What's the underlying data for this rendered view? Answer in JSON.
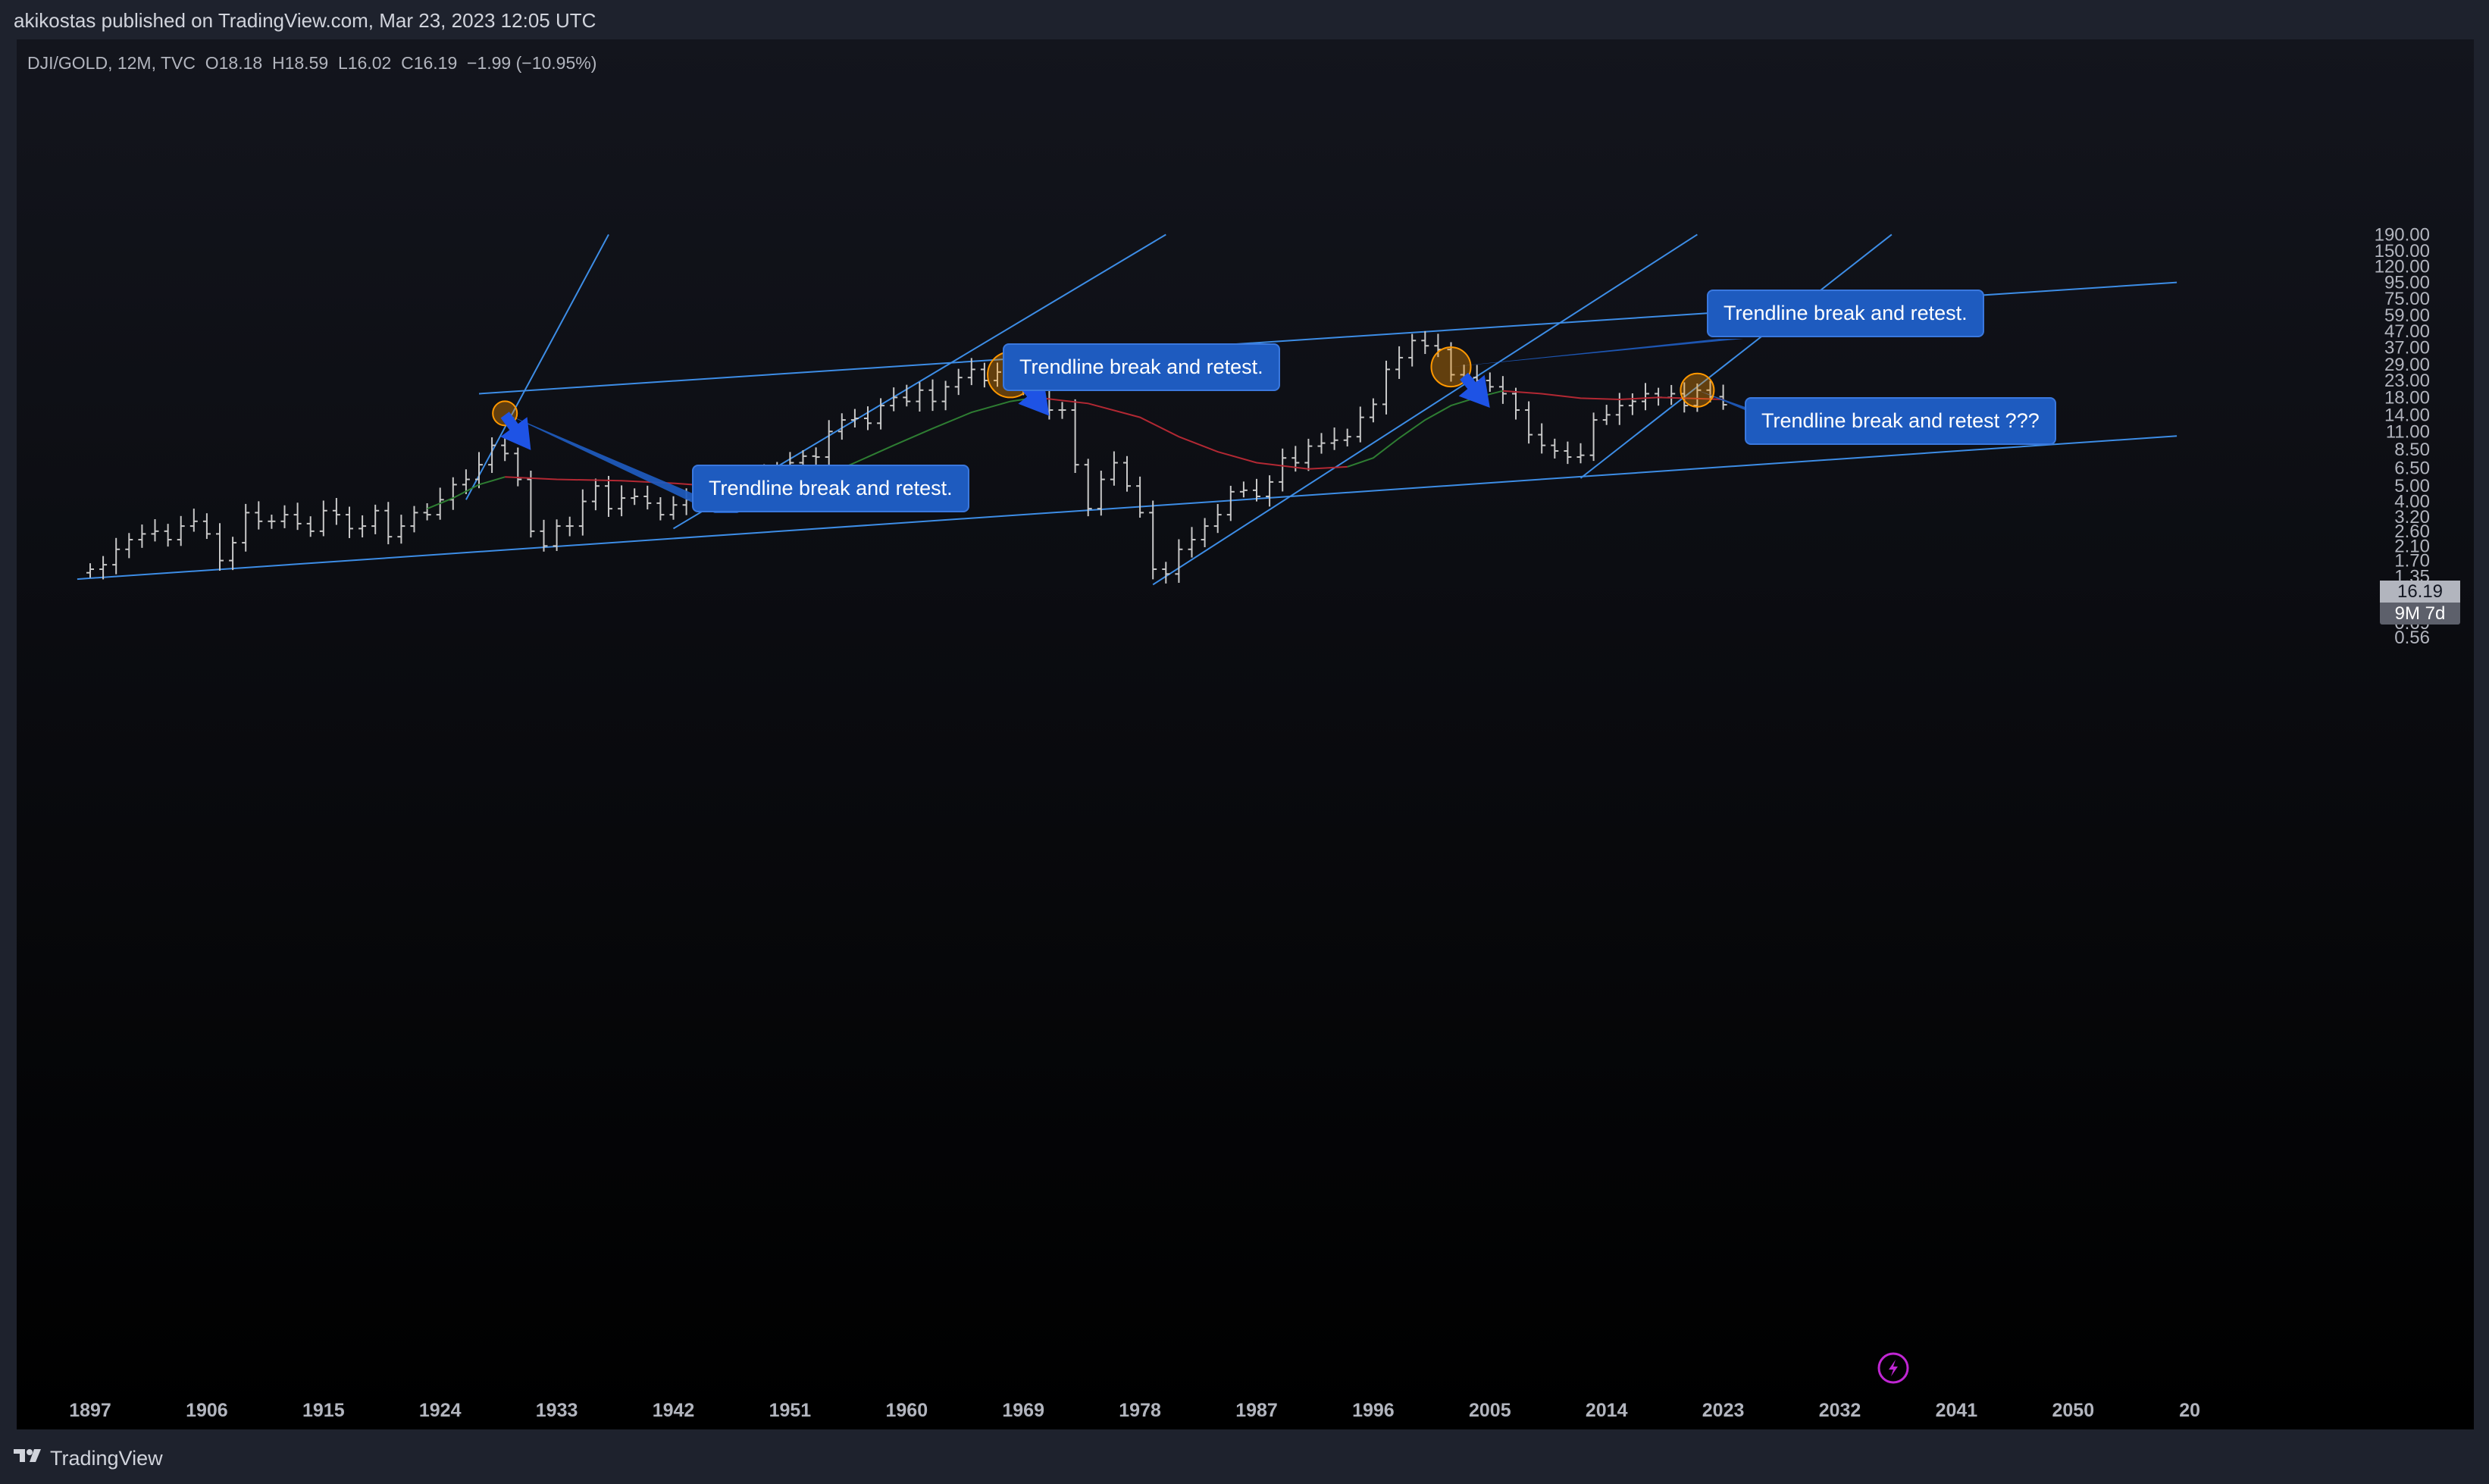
{
  "header": {
    "publish_line": "akikostas published on TradingView.com, Mar 23, 2023 12:05 UTC"
  },
  "legend": {
    "symbol": "DJI/GOLD, 12M, TVC",
    "open": "O18.18",
    "high": "H18.59",
    "low": "L16.02",
    "close": "C16.19",
    "change": "−1.99 (−10.95%)"
  },
  "price_label": {
    "value": "16.19",
    "countdown": "9M 7d"
  },
  "callouts": [
    "Trendline break and retest.",
    "Trendline break and retest.",
    "Trendline break and retest.",
    "Trendline break and retest ???"
  ],
  "footer": {
    "brand": "TradingView"
  },
  "icons": [
    "tradingview-logo-icon",
    "lightning-icon"
  ],
  "colors": {
    "bars": "#c8c8c8",
    "trendline": "#2962ff",
    "channel": "#3d8de6",
    "ma_fast": "#2e7d32",
    "ma_slow": "#b22833",
    "highlight": "#ff9800",
    "arrow": "#1e53e5",
    "callout_bg": "#1e5bbf"
  },
  "chart_data": {
    "type": "ohlc",
    "symbol": "DJI/GOLD",
    "interval": "12M",
    "y_scale": "log",
    "ylim": [
      0.5,
      190
    ],
    "xlim": [
      1895,
      2058
    ],
    "y_ticks": [
      "190.00",
      "150.00",
      "120.00",
      "95.00",
      "75.00",
      "59.00",
      "47.00",
      "37.00",
      "29.00",
      "23.00",
      "18.00",
      "14.00",
      "11.00",
      "8.50",
      "6.50",
      "5.00",
      "4.00",
      "3.20",
      "2.60",
      "2.10",
      "1.70",
      "1.35",
      "1.10",
      "0.85",
      "0.69",
      "0.56"
    ],
    "x_ticks": [
      "1897",
      "1906",
      "1915",
      "1924",
      "1933",
      "1942",
      "1951",
      "1960",
      "1969",
      "1978",
      "1987",
      "1996",
      "2005",
      "2014",
      "2023",
      "2032",
      "2041",
      "2050",
      "20"
    ],
    "bars": [
      {
        "year": 1897,
        "close": 1.5
      },
      {
        "year": 1898,
        "close": 1.6
      },
      {
        "year": 1899,
        "close": 2.0
      },
      {
        "year": 1900,
        "close": 2.3
      },
      {
        "year": 1901,
        "close": 2.5
      },
      {
        "year": 1902,
        "close": 2.6
      },
      {
        "year": 1903,
        "close": 2.3
      },
      {
        "year": 1904,
        "close": 2.8
      },
      {
        "year": 1905,
        "close": 3.0
      },
      {
        "year": 1906,
        "close": 2.5
      },
      {
        "year": 1907,
        "close": 1.7
      },
      {
        "year": 1908,
        "close": 2.2
      },
      {
        "year": 1909,
        "close": 3.4
      },
      {
        "year": 1910,
        "close": 3.0
      },
      {
        "year": 1911,
        "close": 3.0
      },
      {
        "year": 1912,
        "close": 3.3
      },
      {
        "year": 1913,
        "close": 2.9
      },
      {
        "year": 1914,
        "close": 2.6
      },
      {
        "year": 1915,
        "close": 3.5
      },
      {
        "year": 1916,
        "close": 3.3
      },
      {
        "year": 1917,
        "close": 2.7
      },
      {
        "year": 1918,
        "close": 2.8
      },
      {
        "year": 1919,
        "close": 3.5
      },
      {
        "year": 1920,
        "close": 2.4
      },
      {
        "year": 1921,
        "close": 2.8
      },
      {
        "year": 1922,
        "close": 3.4
      },
      {
        "year": 1923,
        "close": 3.3
      },
      {
        "year": 1924,
        "close": 4.1
      },
      {
        "year": 1925,
        "close": 5.1
      },
      {
        "year": 1926,
        "close": 5.5
      },
      {
        "year": 1927,
        "close": 6.8
      },
      {
        "year": 1928,
        "close": 9.0
      },
      {
        "year": 1929,
        "close": 8.0
      },
      {
        "year": 1930,
        "close": 5.5
      },
      {
        "year": 1931,
        "close": 2.6
      },
      {
        "year": 1932,
        "close": 2.1
      },
      {
        "year": 1933,
        "close": 2.8
      },
      {
        "year": 1934,
        "close": 2.8
      },
      {
        "year": 1935,
        "close": 4.0
      },
      {
        "year": 1936,
        "close": 5.0
      },
      {
        "year": 1937,
        "close": 3.6
      },
      {
        "year": 1938,
        "close": 4.2
      },
      {
        "year": 1939,
        "close": 4.3
      },
      {
        "year": 1940,
        "close": 3.9
      },
      {
        "year": 1941,
        "close": 3.3
      },
      {
        "year": 1942,
        "close": 3.8
      },
      {
        "year": 1943,
        "close": 4.1
      },
      {
        "year": 1944,
        "close": 4.4
      },
      {
        "year": 1945,
        "close": 5.2
      },
      {
        "year": 1946,
        "close": 5.0
      },
      {
        "year": 1947,
        "close": 5.0
      },
      {
        "year": 1948,
        "close": 5.1
      },
      {
        "year": 1949,
        "close": 5.7
      },
      {
        "year": 1950,
        "close": 6.3
      },
      {
        "year": 1951,
        "close": 7.0
      },
      {
        "year": 1952,
        "close": 7.7
      },
      {
        "year": 1953,
        "close": 7.6
      },
      {
        "year": 1954,
        "close": 11.0
      },
      {
        "year": 1955,
        "close": 13.0
      },
      {
        "year": 1956,
        "close": 13.3
      },
      {
        "year": 1957,
        "close": 12.4
      },
      {
        "year": 1958,
        "close": 16.0
      },
      {
        "year": 1959,
        "close": 18.0
      },
      {
        "year": 1960,
        "close": 17.0
      },
      {
        "year": 1961,
        "close": 20.0
      },
      {
        "year": 1962,
        "close": 17.0
      },
      {
        "year": 1963,
        "close": 21.0
      },
      {
        "year": 1964,
        "close": 24.0
      },
      {
        "year": 1965,
        "close": 27.0
      },
      {
        "year": 1966,
        "close": 23.0
      },
      {
        "year": 1967,
        "close": 26.0
      },
      {
        "year": 1968,
        "close": 23.0
      },
      {
        "year": 1969,
        "close": 20.0
      },
      {
        "year": 1970,
        "close": 22.0
      },
      {
        "year": 1971,
        "close": 15.0
      },
      {
        "year": 1972,
        "close": 15.0
      },
      {
        "year": 1973,
        "close": 6.8
      },
      {
        "year": 1974,
        "close": 3.6
      },
      {
        "year": 1975,
        "close": 5.5
      },
      {
        "year": 1976,
        "close": 7.0
      },
      {
        "year": 1977,
        "close": 5.0
      },
      {
        "year": 1978,
        "close": 3.4
      },
      {
        "year": 1979,
        "close": 1.5
      },
      {
        "year": 1980,
        "close": 1.4
      },
      {
        "year": 1981,
        "close": 2.0
      },
      {
        "year": 1982,
        "close": 2.3
      },
      {
        "year": 1983,
        "close": 2.8
      },
      {
        "year": 1984,
        "close": 3.3
      },
      {
        "year": 1985,
        "close": 4.6
      },
      {
        "year": 1986,
        "close": 4.7
      },
      {
        "year": 1987,
        "close": 4.3
      },
      {
        "year": 1988,
        "close": 5.3
      },
      {
        "year": 1989,
        "close": 7.5
      },
      {
        "year": 1990,
        "close": 7.0
      },
      {
        "year": 1991,
        "close": 8.9
      },
      {
        "year": 1992,
        "close": 9.3
      },
      {
        "year": 1993,
        "close": 9.7
      },
      {
        "year": 1994,
        "close": 10.2
      },
      {
        "year": 1995,
        "close": 13.5
      },
      {
        "year": 1996,
        "close": 16.3
      },
      {
        "year": 1997,
        "close": 27.0
      },
      {
        "year": 1998,
        "close": 32.0
      },
      {
        "year": 1999,
        "close": 41.0
      },
      {
        "year": 2000,
        "close": 38.0
      },
      {
        "year": 2001,
        "close": 36.0
      },
      {
        "year": 2002,
        "close": 25.0
      },
      {
        "year": 2003,
        "close": 24.0
      },
      {
        "year": 2004,
        "close": 23.0
      },
      {
        "year": 2005,
        "close": 21.0
      },
      {
        "year": 2006,
        "close": 19.0
      },
      {
        "year": 2007,
        "close": 15.0
      },
      {
        "year": 2008,
        "close": 10.5
      },
      {
        "year": 2009,
        "close": 9.0
      },
      {
        "year": 2010,
        "close": 8.3
      },
      {
        "year": 2011,
        "close": 7.6
      },
      {
        "year": 2012,
        "close": 7.8
      },
      {
        "year": 2013,
        "close": 13.0
      },
      {
        "year": 2014,
        "close": 14.0
      },
      {
        "year": 2015,
        "close": 16.0
      },
      {
        "year": 2016,
        "close": 17.0
      },
      {
        "year": 2017,
        "close": 19.0
      },
      {
        "year": 2018,
        "close": 18.0
      },
      {
        "year": 2019,
        "close": 19.0
      },
      {
        "year": 2020,
        "close": 16.0
      },
      {
        "year": 2021,
        "close": 20.0
      },
      {
        "year": 2022,
        "close": 18.2
      },
      {
        "year": 2023,
        "close": 16.19
      }
    ],
    "moving_averages": [
      {
        "color": "green",
        "points": [
          [
            1923,
            3.6
          ],
          [
            1925,
            4.2
          ],
          [
            1927,
            5.1
          ],
          [
            1929,
            5.7
          ]
        ]
      },
      {
        "color": "red",
        "points": [
          [
            1929,
            5.7
          ],
          [
            1933,
            5.5
          ],
          [
            1938,
            5.4
          ],
          [
            1942,
            5.2
          ],
          [
            1945,
            5.0
          ],
          [
            1950,
            5.0
          ]
        ]
      },
      {
        "color": "green",
        "points": [
          [
            1950,
            5.0
          ],
          [
            1953,
            5.5
          ],
          [
            1956,
            7.0
          ],
          [
            1959,
            9.0
          ],
          [
            1962,
            11.5
          ],
          [
            1965,
            14.5
          ],
          [
            1968,
            17.0
          ],
          [
            1970,
            18.0
          ]
        ]
      },
      {
        "color": "red",
        "points": [
          [
            1970,
            18.0
          ],
          [
            1974,
            16.5
          ],
          [
            1978,
            13.5
          ],
          [
            1981,
            10.2
          ],
          [
            1984,
            8.2
          ],
          [
            1987,
            7.0
          ],
          [
            1991,
            6.4
          ],
          [
            1994,
            6.6
          ]
        ]
      },
      {
        "color": "green",
        "points": [
          [
            1994,
            6.6
          ],
          [
            1996,
            7.5
          ],
          [
            1998,
            10.0
          ],
          [
            2000,
            13.0
          ],
          [
            2002,
            16.0
          ],
          [
            2004,
            18.0
          ],
          [
            2006,
            19.8
          ]
        ]
      },
      {
        "color": "red",
        "points": [
          [
            2006,
            19.8
          ],
          [
            2009,
            19.0
          ],
          [
            2012,
            17.8
          ],
          [
            2015,
            17.5
          ],
          [
            2018,
            18.0
          ],
          [
            2021,
            17.7
          ],
          [
            2023,
            17.5
          ]
        ]
      }
    ],
    "trendlines": [
      {
        "from": [
          1896,
          1.3
        ],
        "to": [
          2058,
          10.3
        ]
      },
      {
        "from": [
          1927,
          19.0
        ],
        "to": [
          2058,
          95.0
        ]
      },
      {
        "from": [
          1926,
          4.1
        ],
        "to": [
          1937,
          190.0
        ]
      },
      {
        "from": [
          1942,
          2.7
        ],
        "to": [
          1980,
          190.0
        ]
      },
      {
        "from": [
          1979,
          1.2
        ],
        "to": [
          2021,
          190.0
        ]
      },
      {
        "from": [
          2012,
          5.6
        ],
        "to": [
          2036,
          190.0
        ]
      }
    ],
    "retest_points": [
      [
        1929,
        14.3
      ],
      [
        1968,
        25.0
      ],
      [
        2002,
        28.0
      ],
      [
        2021,
        20.0
      ]
    ],
    "arrows": [
      {
        "from": [
          1929,
          14.0
        ],
        "to": [
          1931,
          8.4
        ]
      },
      {
        "from": [
          1969,
          22.0
        ],
        "to": [
          1971,
          13.8
        ]
      },
      {
        "from": [
          2003,
          24.5
        ],
        "to": [
          2005,
          15.5
        ]
      }
    ]
  }
}
